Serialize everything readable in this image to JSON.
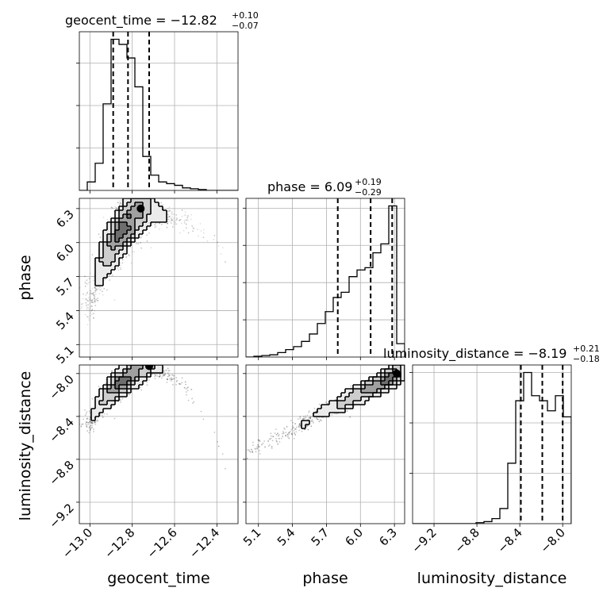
{
  "chart_data": {
    "type": "corner",
    "parameters": [
      "geocent_time",
      "phase",
      "luminosity_distance"
    ],
    "titles": [
      {
        "param": "geocent_time",
        "text": "geocent_time = −12.82",
        "plus": "+0.10",
        "minus": "−0.07"
      },
      {
        "param": "phase",
        "text": "phase = 6.09",
        "plus": "+0.19",
        "minus": "−0.29"
      },
      {
        "param": "luminosity_distance",
        "text": "luminosity_distance = −8.19",
        "plus": "+0.21",
        "minus": "−0.18"
      }
    ],
    "axes": {
      "geocent_time": {
        "range": [
          -13.05,
          -12.3
        ],
        "ticks": [
          -13.0,
          -12.8,
          -12.6,
          -12.4
        ],
        "tick_labels": [
          "−13.0",
          "−12.8",
          "−12.6",
          "−12.4"
        ],
        "label": "geocent_time"
      },
      "phase": {
        "range": [
          4.99,
          6.39
        ],
        "ticks": [
          5.1,
          5.4,
          5.7,
          6.0,
          6.3
        ],
        "tick_labels": [
          "5.1",
          "5.4",
          "5.7",
          "6.0",
          "6.3"
        ],
        "label": "phase"
      },
      "luminosity_distance": {
        "range": [
          -9.4,
          -7.92
        ],
        "ticks": [
          -9.2,
          -8.8,
          -8.4,
          -8.0
        ],
        "tick_labels": [
          "−9.2",
          "−8.8",
          "−8.4",
          "−8.0"
        ],
        "label": "luminosity_distance"
      }
    },
    "histograms": [
      {
        "param": "geocent_time",
        "quantiles": [
          -12.89,
          -12.82,
          -12.72
        ],
        "bin_edges": [
          -13.05,
          -13.0125,
          -12.975,
          -12.9375,
          -12.9,
          -12.8625,
          -12.825,
          -12.7875,
          -12.75,
          -12.7125,
          -12.675,
          -12.6375,
          -12.6,
          -12.5625,
          -12.525,
          -12.4875,
          -12.45,
          -12.4125,
          -12.375,
          -12.3375,
          -12.3
        ],
        "counts": [
          0,
          10,
          32,
          102,
          178,
          172,
          156,
          122,
          40,
          18,
          10,
          8,
          6,
          3,
          2,
          1,
          0,
          0,
          0,
          0
        ]
      },
      {
        "param": "phase",
        "quantiles": [
          5.8,
          6.09,
          6.28
        ],
        "bin_edges": [
          4.99,
          5.06,
          5.13,
          5.2,
          5.27,
          5.34,
          5.41,
          5.48,
          5.55,
          5.62,
          5.69,
          5.76,
          5.83,
          5.9,
          5.97,
          6.04,
          6.11,
          6.18,
          6.25,
          6.32,
          6.39
        ],
        "counts": [
          0,
          1,
          2,
          3,
          6,
          10,
          14,
          21,
          31,
          45,
          61,
          80,
          87,
          108,
          117,
          120,
          140,
          152,
          203,
          18
        ]
      },
      {
        "param": "luminosity_distance",
        "quantiles": [
          -8.39,
          -8.19,
          -8.0
        ],
        "bin_edges": [
          -9.4,
          -9.326,
          -9.252,
          -9.178,
          -9.104,
          -9.03,
          -8.956,
          -8.882,
          -8.808,
          -8.734,
          -8.66,
          -8.586,
          -8.512,
          -8.438,
          -8.364,
          -8.29,
          -8.216,
          -8.142,
          -8.068,
          -7.994,
          -7.92
        ],
        "counts": [
          0,
          0,
          0,
          0,
          0,
          0,
          0,
          0,
          1,
          2,
          5,
          15,
          60,
          122,
          150,
          127,
          122,
          112,
          127,
          106
        ]
      }
    ],
    "contour_panels": [
      {
        "x": "geocent_time",
        "y": "phase",
        "mode": [
          -12.76,
          6.3
        ],
        "samples_center": [
          -12.84,
          6.05
        ],
        "levels_sigma": [
          0.5,
          1.0,
          1.5,
          2.0
        ]
      },
      {
        "x": "geocent_time",
        "y": "luminosity_distance",
        "mode": [
          -12.72,
          -7.93
        ],
        "samples_center": [
          -12.82,
          -8.2
        ],
        "levels_sigma": [
          0.5,
          1.0,
          1.5,
          2.0
        ]
      },
      {
        "x": "phase",
        "y": "luminosity_distance",
        "mode": [
          6.32,
          -8.0
        ],
        "samples_center": [
          6.0,
          -8.2
        ],
        "levels_sigma": [
          0.5,
          1.0,
          1.5,
          2.0
        ]
      }
    ],
    "grid": true,
    "legend": "none"
  }
}
